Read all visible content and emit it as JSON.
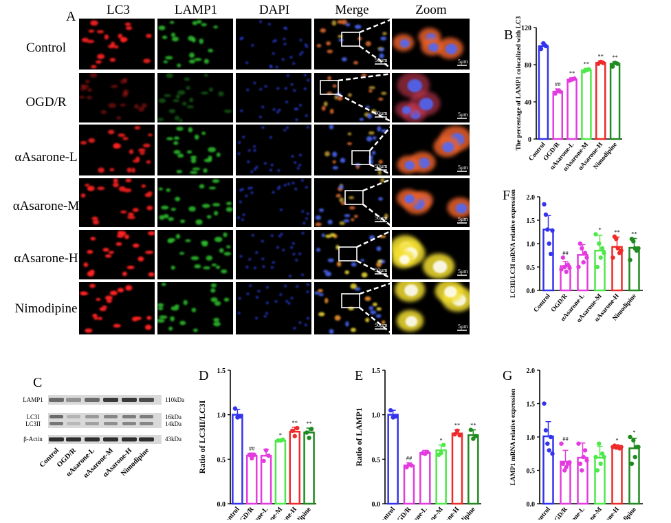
{
  "panels": {
    "A": {
      "letter": "A",
      "columns": [
        "LC3",
        "LAMP1",
        "DAPI",
        "Merge",
        "Zoom"
      ],
      "rows": [
        "Control",
        "OGD/R",
        "αAsarone-L",
        "αAsarone-M",
        "αAsarone-H",
        "Nimodipine"
      ],
      "scale_merge": "50μm",
      "scale_zoom": "5μm"
    },
    "C": {
      "letter": "C",
      "bands": [
        "LAMP1",
        "LC3I",
        "LC3II",
        "β-Actin"
      ],
      "sizes": [
        "110kDa",
        "16kDa",
        "14kDa",
        "43kDa"
      ],
      "lanes": [
        "Control",
        "OGD/R",
        "αAsarone-L",
        "αAsarone-M",
        "αAsarone-H",
        "Nimodipine"
      ]
    }
  },
  "colors": {
    "Control": "#3333ee",
    "OGD/R": "#e33be0",
    "αAsarone-L": "#e33be0",
    "αAsarone-M": "#4ee84a",
    "αAsarone-H": "#ee2a2a",
    "Nimodipine": "#1f8a1f"
  },
  "chart_data": [
    {
      "panel": "B",
      "type": "bar",
      "ylabel": "The percentage of LAMP1 colocalized with LC3",
      "categories": [
        "Control",
        "OGD/R",
        "αAsarone-L",
        "αAsarone-M",
        "αAsarone-H",
        "Nimodipine"
      ],
      "values": [
        100,
        51,
        64,
        74,
        82,
        81
      ],
      "errors": [
        3,
        3,
        2,
        2,
        2,
        2
      ],
      "points": [
        [
          97,
          103,
          100
        ],
        [
          49,
          52,
          51
        ],
        [
          63,
          64,
          65
        ],
        [
          73,
          74,
          75
        ],
        [
          81,
          83,
          82
        ],
        [
          78,
          82,
          81
        ]
      ],
      "annotations": [
        "",
        "##",
        "**",
        "**",
        "**",
        "**"
      ],
      "ylim": [
        0,
        120
      ],
      "yticks": [
        0,
        40,
        80,
        120
      ],
      "ytick_labels": [
        "0",
        "40",
        "80",
        "120"
      ]
    },
    {
      "panel": "D",
      "type": "bar",
      "ylabel": "Ratio of LC3II/LC3I",
      "categories": [
        "Control",
        "OGD/R",
        "αAsarone-L",
        "αAsarone-M",
        "αAsarone-H",
        "Nimodipine"
      ],
      "values": [
        1.0,
        0.54,
        0.54,
        0.71,
        0.81,
        0.8
      ],
      "errors": [
        0.06,
        0.03,
        0.07,
        0.01,
        0.05,
        0.05
      ],
      "points": [
        [
          1.07,
          0.97,
          0.98
        ],
        [
          0.55,
          0.51,
          0.55
        ],
        [
          0.48,
          0.6,
          0.54
        ],
        [
          0.71,
          0.71,
          0.72
        ],
        [
          0.82,
          0.76,
          0.85
        ],
        [
          0.8,
          0.74,
          0.84
        ]
      ],
      "annotations": [
        "",
        "##",
        "",
        "*",
        "**",
        "**"
      ],
      "ylim": [
        0,
        1.5
      ],
      "yticks": [
        0,
        0.5,
        1.0,
        1.5
      ],
      "ytick_labels": [
        "0.0",
        "0.5",
        "1.0",
        "1.5"
      ]
    },
    {
      "panel": "E",
      "type": "bar",
      "ylabel": "Ratio of LAMP1",
      "categories": [
        "Control",
        "OGD/R",
        "αAsarone-L",
        "αAsarone-M",
        "αAsarone-H",
        "Nimodipine"
      ],
      "values": [
        1.0,
        0.43,
        0.57,
        0.6,
        0.79,
        0.77
      ],
      "errors": [
        0.05,
        0.03,
        0.03,
        0.06,
        0.04,
        0.06
      ],
      "points": [
        [
          1.05,
          0.97,
          0.98
        ],
        [
          0.41,
          0.44,
          0.43
        ],
        [
          0.57,
          0.56,
          0.58
        ],
        [
          0.55,
          0.57,
          0.66
        ],
        [
          0.78,
          0.82,
          0.77
        ],
        [
          0.83,
          0.73,
          0.76
        ]
      ],
      "annotations": [
        "",
        "##",
        "",
        "*",
        "**",
        "**"
      ],
      "ylim": [
        0,
        1.5
      ],
      "yticks": [
        0,
        0.5,
        1.0,
        1.5
      ],
      "ytick_labels": [
        "0.0",
        "0.5",
        "1.0",
        "1.5"
      ]
    },
    {
      "panel": "F",
      "type": "bar",
      "ylabel": "LC3II/LC3I mRNA relative expression",
      "categories": [
        "Control",
        "OGD/R",
        "αAsarone-L",
        "αAsarone-M",
        "αAsarone-H",
        "Nimodipine"
      ],
      "values": [
        1.3,
        0.52,
        0.76,
        0.85,
        0.93,
        0.91
      ],
      "errors": [
        0.3,
        0.1,
        0.22,
        0.33,
        0.21,
        0.2
      ],
      "points": [
        [
          1.84,
          1.62,
          1.3,
          1.0,
          0.78,
          1.28
        ],
        [
          0.45,
          0.7,
          0.5,
          0.4,
          0.55,
          0.48
        ],
        [
          0.5,
          1.0,
          0.9,
          0.6,
          0.8,
          0.7
        ],
        [
          1.2,
          0.5,
          1.0,
          0.7,
          0.9,
          0.8
        ],
        [
          0.7,
          1.15,
          1.1,
          0.9,
          0.8,
          0.85
        ],
        [
          0.65,
          1.1,
          1.05,
          0.9,
          0.85,
          0.9
        ]
      ],
      "annotations": [
        "",
        "##",
        "",
        "*",
        "**",
        "**"
      ],
      "ylim": [
        0,
        2.0
      ],
      "yticks": [
        0,
        0.5,
        1.0,
        1.5,
        2.0
      ],
      "ytick_labels": [
        "0.0",
        "0.5",
        "1.0",
        "1.5",
        "2.0"
      ]
    },
    {
      "panel": "G",
      "type": "bar",
      "ylabel": "LAMP1 mRNA relative expression",
      "categories": [
        "Control",
        "OGD/R",
        "αAsarone-L",
        "αAsarone-M",
        "αAsarone-H",
        "Nimodipine"
      ],
      "values": [
        1.01,
        0.63,
        0.69,
        0.69,
        0.85,
        0.83
      ],
      "errors": [
        0.22,
        0.17,
        0.22,
        0.17,
        0.03,
        0.15
      ],
      "points": [
        [
          1.5,
          1.1,
          0.9,
          0.8,
          1.0,
          0.75
        ],
        [
          0.9,
          0.6,
          0.5,
          0.55,
          0.6,
          0.62
        ],
        [
          0.9,
          0.6,
          0.5,
          0.7,
          0.8,
          0.65
        ],
        [
          0.7,
          0.5,
          0.9,
          0.6,
          0.75,
          0.7
        ],
        [
          0.85,
          0.87,
          0.84,
          0.86,
          0.83,
          0.85
        ],
        [
          1.0,
          0.6,
          0.95,
          0.7,
          0.85,
          0.85
        ]
      ],
      "annotations": [
        "",
        "##",
        "",
        "",
        "*",
        "*"
      ],
      "ylim": [
        0,
        2.0
      ],
      "yticks": [
        0,
        0.5,
        1.0,
        1.5,
        2.0
      ],
      "ytick_labels": [
        "0.0",
        "0.5",
        "1.0",
        "1.5",
        "2.0"
      ]
    }
  ]
}
